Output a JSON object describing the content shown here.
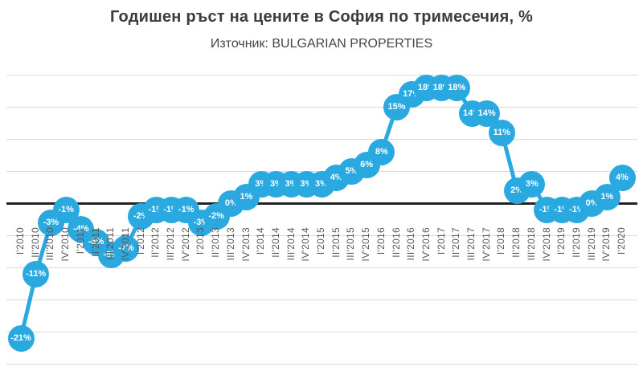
{
  "header": {
    "title": "Годишен ръст на цените в София по тримесечия, %",
    "subtitle": "Източник: BULGARIAN PROPERTIES"
  },
  "chart_data": {
    "type": "line",
    "title": "Годишен ръст на цените в София по тримесечия, %",
    "subtitle": "Източник: BULGARIAN PROPERTIES",
    "xlabel": "",
    "ylabel": "",
    "categories": [
      "I'2010",
      "II'2010",
      "III'2010",
      "IV'2010",
      "I'2011",
      "II'2011",
      "III'2011",
      "IV'2011",
      "I'2012",
      "II'2012",
      "III'2012",
      "IV'2012",
      "I'2013",
      "II'2013",
      "III'2013",
      "IV'2013",
      "I'2014",
      "II'2014",
      "III'2014",
      "IV'2014",
      "I'2015",
      "II'2015",
      "III'2015",
      "IV'2015",
      "I'2016",
      "II'2016",
      "III'2016",
      "IV'2016",
      "I'2017",
      "II'2017",
      "III'2017",
      "IV'2017",
      "I'2018",
      "II'2018",
      "III'2018",
      "IV'2018",
      "I'2019",
      "II'2019",
      "III'2019",
      "IV'2019",
      "I'2020"
    ],
    "values": [
      -21,
      -11,
      -3,
      -1,
      -4,
      -6,
      -8,
      -7,
      -2,
      -1,
      -1,
      -1,
      -3,
      -2,
      0,
      1,
      3,
      3,
      3,
      3,
      3,
      4,
      5,
      6,
      8,
      15,
      17,
      18,
      18,
      18,
      14,
      14,
      11,
      2,
      3,
      -1,
      -1,
      -1,
      0,
      1,
      4
    ],
    "data_label_format": "{value}%",
    "ylim": [
      -25,
      20
    ],
    "gridline_step": 5,
    "grid": true,
    "legend_position": "none",
    "colors": {
      "series": "#29a9e0",
      "data_label_text": "#ffffff",
      "gridline": "#d9d9d9",
      "zero_axis": "#222222",
      "axis_label_text": "#595959",
      "title_text": "#3c3c3c"
    }
  }
}
